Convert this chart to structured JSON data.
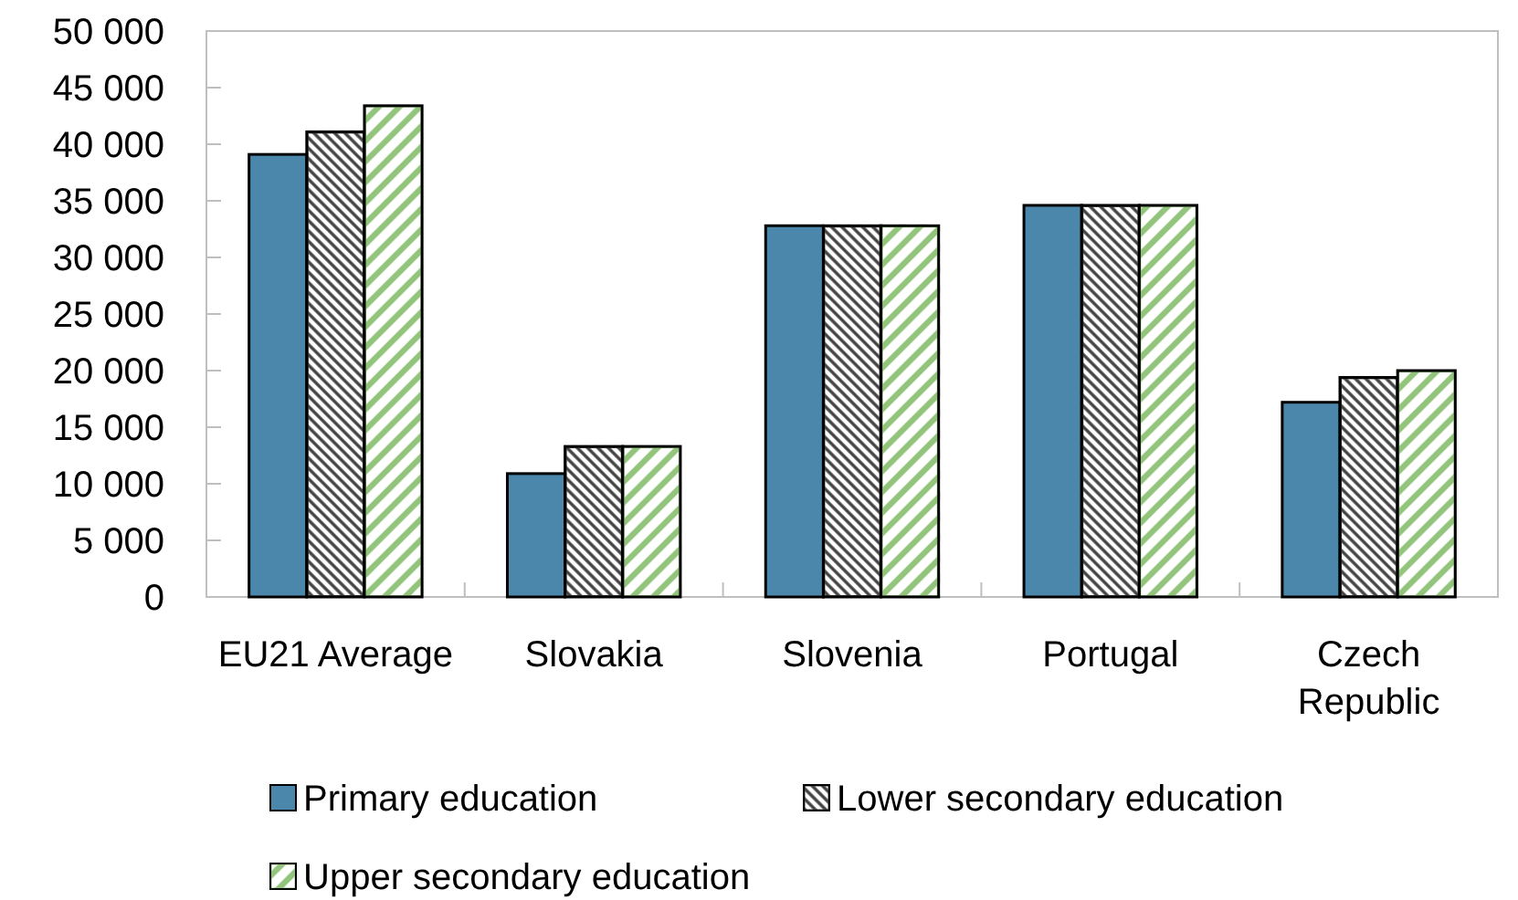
{
  "chart_data": {
    "type": "bar",
    "categories": [
      "EU21 Average",
      "Slovakia",
      "Slovenia",
      "Portugal",
      "Czech Republic"
    ],
    "series": [
      {
        "name": "Primary education",
        "color": "#4a87aa",
        "values": [
          39100,
          10900,
          32800,
          34600,
          17200
        ]
      },
      {
        "name": "Lower secondary education",
        "color": "#404040",
        "values": [
          41100,
          13300,
          32800,
          34600,
          19400
        ]
      },
      {
        "name": "Upper secondary education",
        "color": "#92c47b",
        "values": [
          43400,
          13300,
          32800,
          34600,
          20000
        ]
      }
    ],
    "ylim": [
      0,
      50000
    ],
    "yticks": [
      0,
      {
        "value": 5000,
        "label": "5 000"
      },
      {
        "value": 10000,
        "label": "10 000"
      },
      {
        "value": 15000,
        "label": "15 000"
      },
      {
        "value": 20000,
        "label": "20 000"
      },
      {
        "value": 25000,
        "label": "25 000"
      },
      {
        "value": 30000,
        "label": "30 000"
      },
      {
        "value": 35000,
        "label": "35 000"
      },
      {
        "value": 40000,
        "label": "40 000"
      },
      {
        "value": 45000,
        "label": "45 000"
      },
      {
        "value": 50000,
        "label": "50 000"
      }
    ],
    "legend": "bottom"
  }
}
